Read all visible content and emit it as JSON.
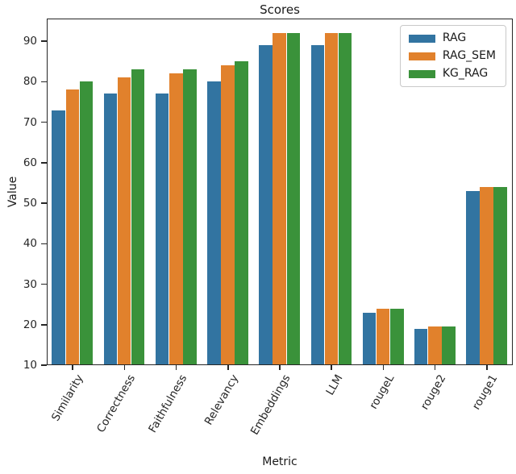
{
  "chart_data": {
    "type": "bar",
    "title": "Scores",
    "xlabel": "Metric",
    "ylabel": "Value",
    "categories": [
      "Similarity",
      "Correctness",
      "Faithfulness",
      "Relevancy",
      "Embeddings",
      "LLM",
      "rougeL",
      "rouge2",
      "rouge1"
    ],
    "series": [
      {
        "name": "RAG",
        "color": "#3274a1",
        "values": [
          73,
          77,
          77,
          80,
          89,
          89,
          23,
          19,
          53
        ]
      },
      {
        "name": "RAG_SEM",
        "color": "#e1812c",
        "values": [
          78,
          81,
          82,
          84,
          92,
          92,
          24,
          19.5,
          54
        ]
      },
      {
        "name": "KG_RAG",
        "color": "#3a923a",
        "values": [
          80,
          83,
          83,
          85,
          92,
          92,
          24,
          19.5,
          54
        ]
      }
    ],
    "ylim": [
      10,
      95.6
    ],
    "yticks": [
      10,
      20,
      30,
      40,
      50,
      60,
      70,
      80,
      90
    ],
    "grid": false,
    "legend_position": "upper right",
    "bar_group_width_fraction": 0.8
  }
}
